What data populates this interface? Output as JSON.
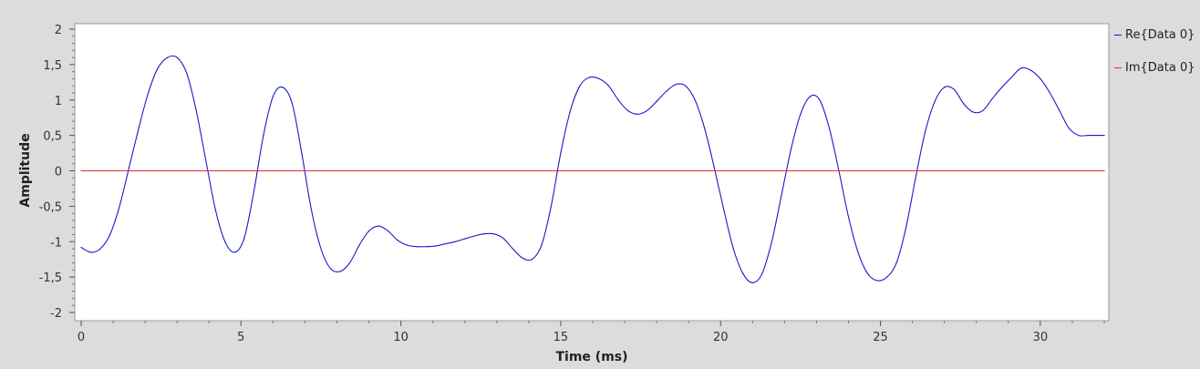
{
  "chart_data": {
    "type": "line",
    "xlabel": "Time (ms)",
    "ylabel": "Amplitude",
    "xlim": [
      0,
      32
    ],
    "ylim": [
      -2,
      2
    ],
    "x_ticks": [
      0,
      5,
      10,
      15,
      20,
      25,
      30
    ],
    "y_ticks": [
      2,
      1.5,
      1,
      0.5,
      0,
      -0.5,
      -1,
      -1.5,
      -2
    ],
    "y_tick_labels": [
      "2",
      "1,5",
      "1",
      "0,5",
      "0",
      "-0,5",
      "-1",
      "-1,5",
      "-2"
    ],
    "legend_position": "right",
    "series": [
      {
        "name": "Re{Data 0}",
        "color": "#1a1acc",
        "x": [
          0,
          0.3,
          0.6,
          0.9,
          1.2,
          1.5,
          1.8,
          2.1,
          2.4,
          2.7,
          3.0,
          3.3,
          3.6,
          3.9,
          4.2,
          4.5,
          4.8,
          5.1,
          5.4,
          5.7,
          6.0,
          6.3,
          6.6,
          6.9,
          7.2,
          7.5,
          7.8,
          8.1,
          8.4,
          8.7,
          9.0,
          9.3,
          9.6,
          9.9,
          10.2,
          10.5,
          10.8,
          11.1,
          11.4,
          11.7,
          12.0,
          12.3,
          12.6,
          12.9,
          13.2,
          13.5,
          13.8,
          14.1,
          14.4,
          14.7,
          15.0,
          15.3,
          15.6,
          15.9,
          16.2,
          16.5,
          16.8,
          17.1,
          17.4,
          17.7,
          18.0,
          18.3,
          18.6,
          18.9,
          19.2,
          19.5,
          19.8,
          20.1,
          20.4,
          20.7,
          21.0,
          21.3,
          21.6,
          21.9,
          22.2,
          22.5,
          22.8,
          23.1,
          23.4,
          23.7,
          24.0,
          24.3,
          24.6,
          24.9,
          25.2,
          25.5,
          25.8,
          26.1,
          26.4,
          26.7,
          27.0,
          27.3,
          27.6,
          27.9,
          28.2,
          28.5,
          28.8,
          29.1,
          29.4,
          29.7,
          30.0,
          30.3,
          30.6,
          30.9,
          31.2,
          31.5,
          31.8,
          32.0
        ],
        "values": [
          -1.08,
          -1.15,
          -1.1,
          -0.9,
          -0.5,
          0.05,
          0.6,
          1.1,
          1.45,
          1.6,
          1.6,
          1.38,
          0.85,
          0.15,
          -0.55,
          -1.0,
          -1.15,
          -0.95,
          -0.3,
          0.5,
          1.05,
          1.18,
          0.95,
          0.25,
          -0.55,
          -1.1,
          -1.38,
          -1.42,
          -1.3,
          -1.05,
          -0.85,
          -0.78,
          -0.85,
          -0.98,
          -1.05,
          -1.07,
          -1.07,
          -1.06,
          -1.03,
          -1.0,
          -0.96,
          -0.92,
          -0.89,
          -0.89,
          -0.95,
          -1.1,
          -1.23,
          -1.25,
          -1.05,
          -0.5,
          0.25,
          0.85,
          1.2,
          1.32,
          1.3,
          1.2,
          1.0,
          0.85,
          0.8,
          0.85,
          0.98,
          1.12,
          1.22,
          1.2,
          1.0,
          0.6,
          0.05,
          -0.55,
          -1.1,
          -1.45,
          -1.58,
          -1.45,
          -1.0,
          -0.35,
          0.3,
          0.8,
          1.05,
          1.0,
          0.6,
          0.0,
          -0.65,
          -1.15,
          -1.45,
          -1.55,
          -1.5,
          -1.3,
          -0.8,
          -0.1,
          0.55,
          0.98,
          1.18,
          1.15,
          0.95,
          0.83,
          0.85,
          1.02,
          1.18,
          1.32,
          1.45,
          1.42,
          1.3,
          1.1,
          0.85,
          0.6,
          0.5,
          0.5,
          0.5,
          0.5
        ]
      },
      {
        "name": "Im{Data 0}",
        "color": "#e03030",
        "x": [
          0,
          32
        ],
        "values": [
          0,
          0
        ]
      }
    ]
  }
}
